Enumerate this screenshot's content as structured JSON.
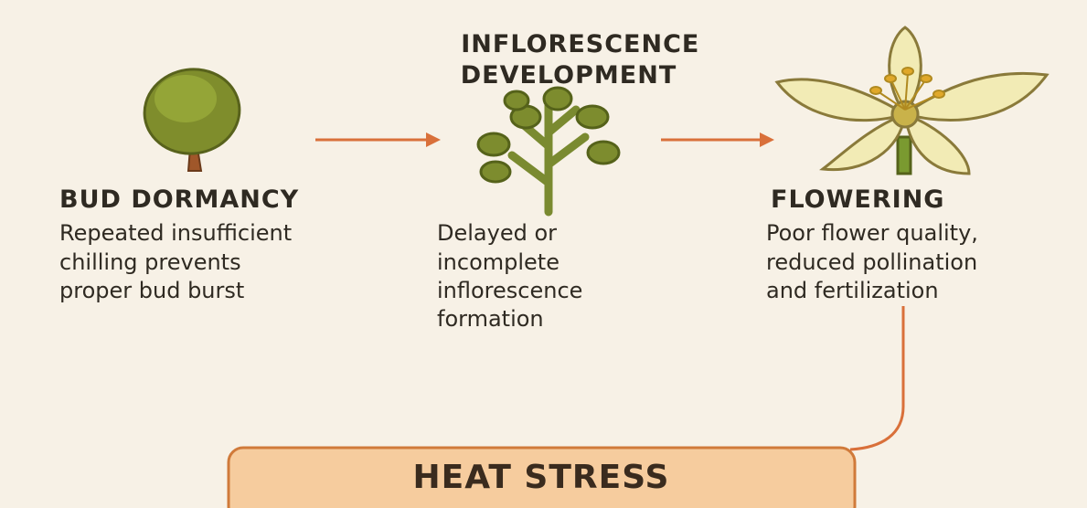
{
  "stages": [
    {
      "title": [
        "BUD DORMANCY"
      ],
      "description": [
        "Repeated insufficient",
        "chilling prevents",
        "proper bud burst"
      ]
    },
    {
      "title": [
        "INFLORESCENCE",
        "DEVELOPMENT"
      ],
      "description": [
        "Delayed or",
        "incomplete",
        "inflorescence",
        "formation"
      ]
    },
    {
      "title": [
        "FLOWERING"
      ],
      "description": [
        "Poor flower quality,",
        "reduced pollination",
        "and fertilization"
      ]
    }
  ],
  "cause": {
    "label": "HEAT STRESS"
  }
}
